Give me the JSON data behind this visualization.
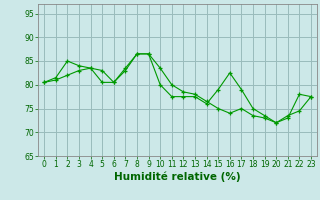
{
  "line1_x": [
    0,
    1,
    2,
    3,
    4,
    5,
    6,
    7,
    8,
    9,
    10,
    11,
    12,
    13,
    14,
    15,
    16,
    17,
    18,
    19,
    20,
    21,
    22,
    23
  ],
  "line1_y": [
    80.5,
    81.5,
    85,
    84,
    83.5,
    80.5,
    80.5,
    83,
    86.5,
    86.5,
    80,
    77.5,
    77.5,
    77.5,
    76,
    79,
    82.5,
    79,
    75,
    73.5,
    72,
    73.5,
    74.5,
    77.5
  ],
  "line2_x": [
    0,
    1,
    2,
    3,
    4,
    5,
    6,
    7,
    8,
    9,
    10,
    11,
    12,
    13,
    14,
    15,
    16,
    17,
    18,
    19,
    20,
    21,
    22,
    23
  ],
  "line2_y": [
    80.5,
    81,
    82,
    83,
    83.5,
    83,
    80.5,
    83.5,
    86.5,
    86.5,
    83.5,
    80,
    78.5,
    78,
    76.5,
    75,
    74,
    75,
    73.5,
    73,
    72,
    73,
    78,
    77.5
  ],
  "line_color": "#009900",
  "marker": "+",
  "bg_color": "#cce8e8",
  "grid_color": "#99bbbb",
  "xlabel": "Humidité relative (%)",
  "xlabel_color": "#006600",
  "ylim": [
    65,
    97
  ],
  "xlim": [
    -0.5,
    23.5
  ],
  "yticks": [
    65,
    70,
    75,
    80,
    85,
    90,
    95
  ],
  "xticks": [
    0,
    1,
    2,
    3,
    4,
    5,
    6,
    7,
    8,
    9,
    10,
    11,
    12,
    13,
    14,
    15,
    16,
    17,
    18,
    19,
    20,
    21,
    22,
    23
  ],
  "tick_fontsize": 5.5,
  "xlabel_fontsize": 7.5,
  "tick_color": "#006600"
}
